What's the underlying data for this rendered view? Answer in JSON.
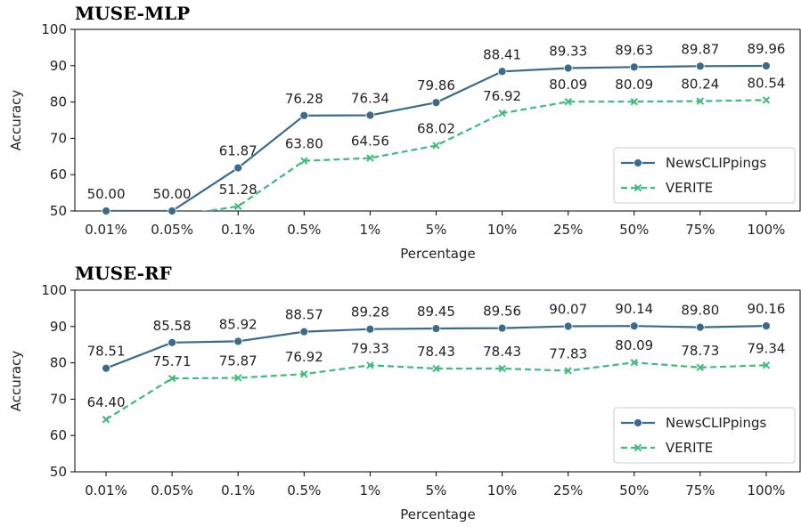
{
  "colors": {
    "newsclippings": "#3a6a8c",
    "verite": "#3dbc7a"
  },
  "chart_data": [
    {
      "type": "line",
      "title": "MUSE-MLP",
      "xlabel": "Percentage",
      "ylabel": "Accuracy",
      "categories": [
        "0.01%",
        "0.05%",
        "0.1%",
        "0.5%",
        "1%",
        "5%",
        "10%",
        "25%",
        "50%",
        "75%",
        "100%"
      ],
      "ylim": [
        50,
        100
      ],
      "yticks": [
        "50",
        "60",
        "70",
        "80",
        "90",
        "100"
      ],
      "legend_position": "lower-right",
      "series": [
        {
          "name": "NewsCLIPpings",
          "marker": "circle",
          "line": "solid",
          "color": "#3a6a8c",
          "values": [
            50.0,
            50.0,
            61.87,
            76.28,
            76.34,
            79.86,
            88.41,
            89.33,
            89.63,
            89.87,
            89.96
          ],
          "labels": [
            "50.00",
            "50.00",
            "61.87",
            "76.28",
            "76.34",
            "79.86",
            "88.41",
            "89.33",
            "89.63",
            "89.87",
            "89.96"
          ]
        },
        {
          "name": "VERITE",
          "marker": "x",
          "line": "dashed",
          "color": "#3dbc7a",
          "values": [
            null,
            48.5,
            51.28,
            63.8,
            64.56,
            68.02,
            76.92,
            80.09,
            80.09,
            80.24,
            80.54
          ],
          "labels": [
            null,
            null,
            "51.28",
            "63.80",
            "64.56",
            "68.02",
            "76.92",
            "80.09",
            "80.09",
            "80.24",
            "80.54"
          ]
        }
      ]
    },
    {
      "type": "line",
      "title": "MUSE-RF",
      "xlabel": "Percentage",
      "ylabel": "Accuracy",
      "categories": [
        "0.01%",
        "0.05%",
        "0.1%",
        "0.5%",
        "1%",
        "5%",
        "10%",
        "25%",
        "50%",
        "75%",
        "100%"
      ],
      "ylim": [
        50,
        100
      ],
      "yticks": [
        "50",
        "60",
        "70",
        "80",
        "90",
        "100"
      ],
      "legend_position": "lower-right",
      "series": [
        {
          "name": "NewsCLIPpings",
          "marker": "circle",
          "line": "solid",
          "color": "#3a6a8c",
          "values": [
            78.51,
            85.58,
            85.92,
            88.57,
            89.28,
            89.45,
            89.56,
            90.07,
            90.14,
            89.8,
            90.16
          ],
          "labels": [
            "78.51",
            "85.58",
            "85.92",
            "88.57",
            "89.28",
            "89.45",
            "89.56",
            "90.07",
            "90.14",
            "89.80",
            "90.16"
          ]
        },
        {
          "name": "VERITE",
          "marker": "x",
          "line": "dashed",
          "color": "#3dbc7a",
          "values": [
            64.4,
            75.71,
            75.87,
            76.92,
            79.33,
            78.43,
            78.43,
            77.83,
            80.09,
            78.73,
            79.34
          ],
          "labels": [
            "64.40",
            "75.71",
            "75.87",
            "76.92",
            "79.33",
            "78.43",
            "78.43",
            "77.83",
            "80.09",
            "78.73",
            "79.34"
          ]
        }
      ]
    }
  ]
}
